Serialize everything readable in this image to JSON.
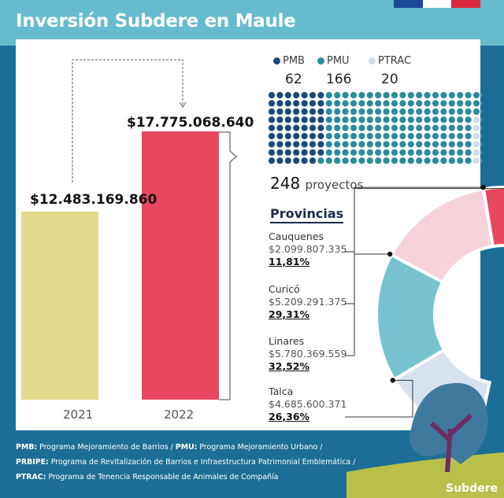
{
  "title": "Inversión Subdere en Maule",
  "colors": {
    "background": "#1d6e96",
    "band": "#66bccd",
    "bar_2021": "#e2da8a",
    "bar_2022": "#e84760",
    "pmb": "#1a4a7a",
    "pmu": "#2b8a9e",
    "ptrac": "#cfdcec",
    "cauquenes": "#e84760",
    "curico": "#f6d2db",
    "linares": "#76c3cf",
    "talca": "#d7e2f1"
  },
  "chart_data": [
    {
      "type": "bar",
      "categories": [
        "2021",
        "2022"
      ],
      "values": [
        12483169860,
        17775068640
      ],
      "value_labels": [
        "$12.483.169.860",
        "$17.775.068.640"
      ],
      "ylim": [
        0,
        17775068640
      ]
    },
    {
      "type": "waffle",
      "series": [
        {
          "name": "PMB",
          "value": 62
        },
        {
          "name": "PMU",
          "value": 166
        },
        {
          "name": "PTRAC",
          "value": 20
        }
      ],
      "total": "248",
      "total_label": "proyectos"
    },
    {
      "type": "pie",
      "title": "Provincias",
      "slices": [
        {
          "name": "Cauquenes",
          "amount": "$2.099.807.335",
          "percent_label": "11,81%",
          "percent": 11.81
        },
        {
          "name": "Curicó",
          "amount": "$5.209.291.375",
          "percent_label": "29,31%",
          "percent": 29.31
        },
        {
          "name": "Linares",
          "amount": "$5.780.369.559",
          "percent_label": "32,52%",
          "percent": 32.52
        },
        {
          "name": "Talca",
          "amount": "$4.685.600.371",
          "percent_label": "26,36%",
          "percent": 26.36
        }
      ]
    }
  ],
  "footer": {
    "line1_bold1": "PMB:",
    "line1_text1": " Programa Mejoramiento de Barrios / ",
    "line1_bold2": "PMU:",
    "line1_text2": " Programa Mejoramiento Urbano /",
    "line2_bold": "PRBIPE:",
    "line2_text": " Programa de Revitalización de Barrios e Infraestructura Patrimonial Emblemática /",
    "line3_bold": "PTRAC:",
    "line3_text": " Programa de Tenencia Responsable de Animales de Compañía"
  },
  "brand": "Subdere"
}
